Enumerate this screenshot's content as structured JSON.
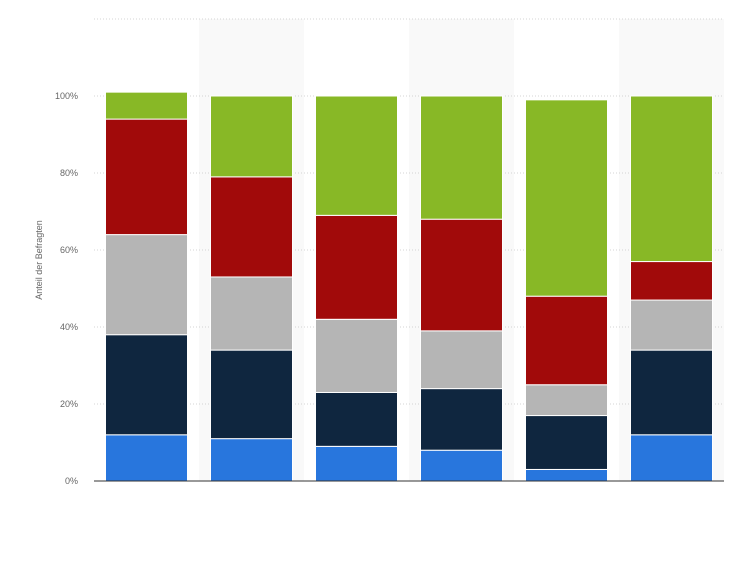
{
  "chart_data": {
    "type": "bar",
    "stacked": true,
    "categories": [
      "",
      "",
      "",
      "",
      "",
      ""
    ],
    "ylabel": "Anteil der Befragten",
    "ylim": [
      0,
      120
    ],
    "yticks": [
      0,
      20,
      40,
      60,
      80,
      100
    ],
    "ytick_format": "{v}%",
    "grid": true,
    "legend": "none",
    "series": [
      {
        "color": "#2876dd",
        "values": [
          12,
          11,
          9,
          8,
          3,
          12
        ]
      },
      {
        "color": "#0f263f",
        "values": [
          26,
          23,
          14,
          16,
          14,
          22
        ]
      },
      {
        "color": "#b5b5b5",
        "values": [
          26,
          19,
          19,
          15,
          8,
          13
        ]
      },
      {
        "color": "#a10a0a",
        "values": [
          30,
          26,
          27,
          29,
          23,
          10
        ]
      },
      {
        "color": "#88b826",
        "values": [
          7,
          21,
          31,
          32,
          51,
          43
        ]
      }
    ]
  }
}
